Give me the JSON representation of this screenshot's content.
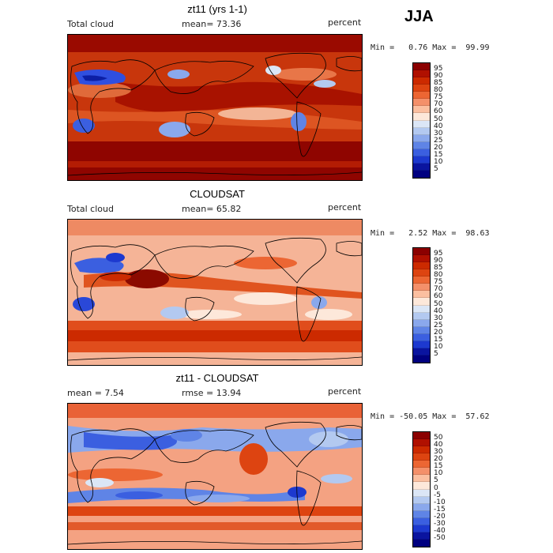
{
  "season": "JJA",
  "panels": [
    {
      "title": "zt11 (yrs 1-1)",
      "left_label": "Total cloud",
      "mid_label": "mean=  73.36",
      "right_label": "percent",
      "minmax": "Min =   0.76 Max =  99.99",
      "levels": [
        "95",
        "90",
        "85",
        "80",
        "75",
        "70",
        "60",
        "50",
        "40",
        "30",
        "25",
        "20",
        "15",
        "10",
        "5"
      ],
      "colors": [
        "#8b0000",
        "#b01000",
        "#cc2a00",
        "#dd4411",
        "#ec6633",
        "#f4906a",
        "#fbbfa0",
        "#fde8da",
        "#dbe6f6",
        "#b3c9f0",
        "#8aa8ec",
        "#5f84e6",
        "#3b5fe0",
        "#1d39cf",
        "#0a149f",
        "#000080"
      ],
      "base_color": "#d23a10"
    },
    {
      "title": "CLOUDSAT",
      "left_label": "Total cloud",
      "mid_label": "mean=  65.82",
      "right_label": "percent",
      "minmax": "Min =   2.52 Max =  98.63",
      "levels": [
        "95",
        "90",
        "85",
        "80",
        "75",
        "70",
        "60",
        "50",
        "40",
        "30",
        "25",
        "20",
        "15",
        "10",
        "5"
      ],
      "colors": [
        "#8b0000",
        "#b01000",
        "#cc2a00",
        "#dd4411",
        "#ec6633",
        "#f4906a",
        "#fbbfa0",
        "#fde8da",
        "#dbe6f6",
        "#b3c9f0",
        "#8aa8ec",
        "#5f84e6",
        "#3b5fe0",
        "#1d39cf",
        "#0a149f",
        "#000080"
      ],
      "base_color": "#f2a27e"
    },
    {
      "title": "zt11 - CLOUDSAT",
      "left_label": "mean =   7.54",
      "mid_label": "rmse =  13.94",
      "right_label": "percent",
      "minmax": "Min = -50.05 Max =  57.62",
      "levels": [
        "50",
        "40",
        "30",
        "20",
        "15",
        "10",
        "5",
        "0",
        "-5",
        "-10",
        "-15",
        "-20",
        "-30",
        "-40",
        "-50"
      ],
      "colors": [
        "#8b0000",
        "#b01000",
        "#cc2a00",
        "#dd4411",
        "#ec6633",
        "#f4906a",
        "#fbbfa0",
        "#fde8da",
        "#dbe6f6",
        "#b3c9f0",
        "#8aa8ec",
        "#5f84e6",
        "#3b5fe0",
        "#1d39cf",
        "#0a149f",
        "#000080"
      ],
      "base_color": "#f3a483"
    }
  ]
}
